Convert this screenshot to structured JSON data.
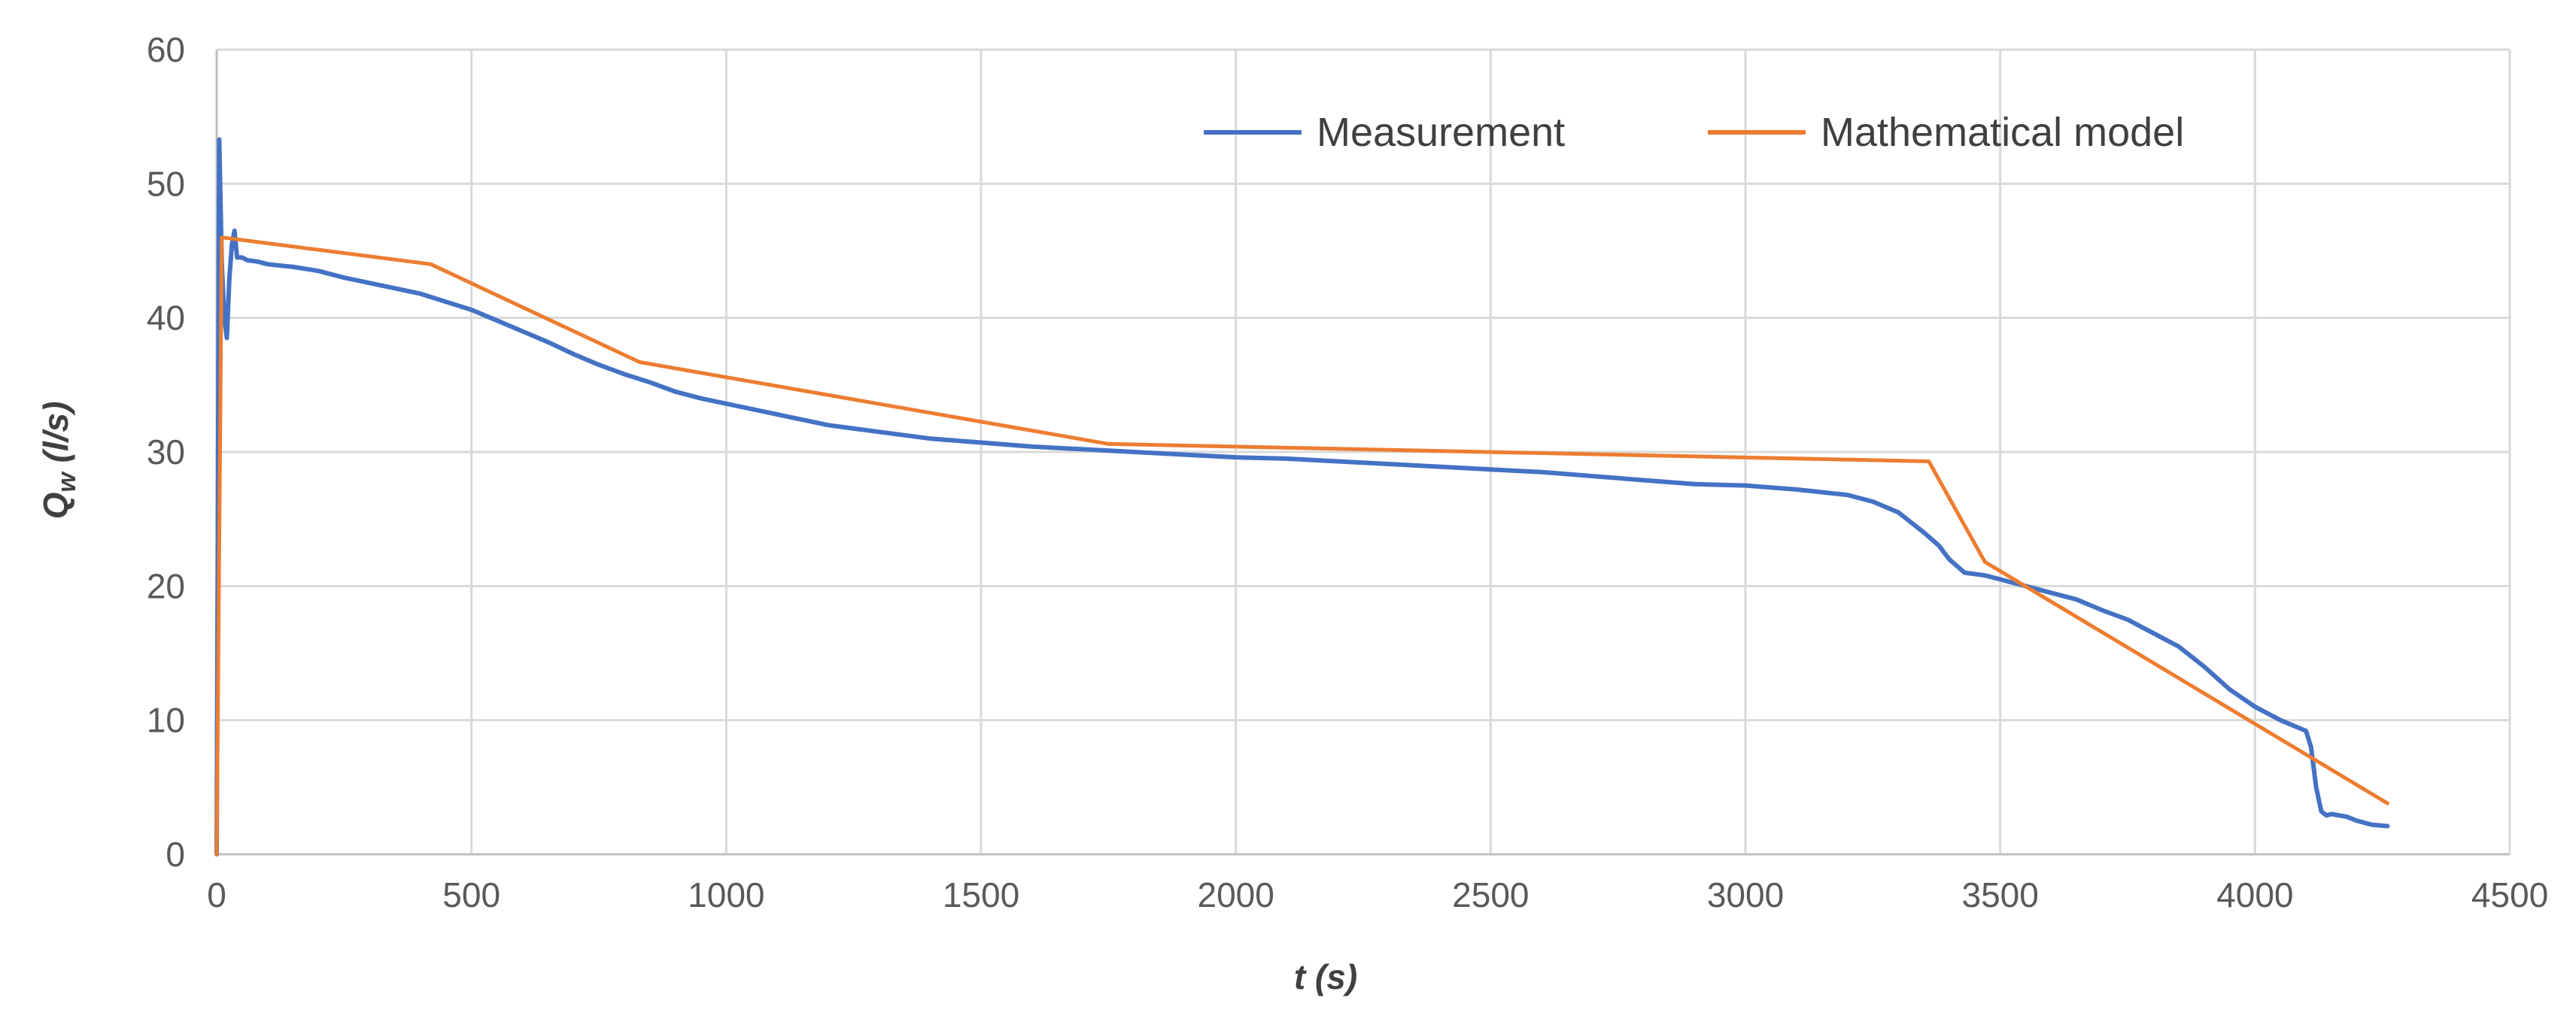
{
  "chart_data": {
    "type": "line",
    "title": "",
    "xlabel": "t (s)",
    "ylabel_main": "Q",
    "ylabel_sub": "w",
    "ylabel_unit": "(l/s)",
    "xlim": [
      0,
      4500
    ],
    "ylim": [
      0,
      60
    ],
    "xticks": [
      0,
      500,
      1000,
      1500,
      2000,
      2500,
      3000,
      3500,
      4000,
      4500
    ],
    "yticks": [
      0,
      10,
      20,
      30,
      40,
      50,
      60
    ],
    "grid": true,
    "legend_position": "top-right",
    "series": [
      {
        "name": "Measurement",
        "color": "#4472c4",
        "x": [
          0,
          5,
          10,
          15,
          20,
          25,
          30,
          35,
          40,
          50,
          60,
          80,
          100,
          150,
          200,
          250,
          300,
          350,
          400,
          450,
          500,
          550,
          600,
          650,
          700,
          750,
          800,
          850,
          900,
          950,
          1000,
          1050,
          1100,
          1150,
          1200,
          1300,
          1400,
          1500,
          1600,
          1700,
          1800,
          1900,
          2000,
          2100,
          2200,
          2300,
          2400,
          2500,
          2600,
          2700,
          2800,
          2900,
          3000,
          3100,
          3200,
          3250,
          3300,
          3350,
          3380,
          3400,
          3430,
          3470,
          3500,
          3550,
          3600,
          3650,
          3700,
          3750,
          3800,
          3850,
          3900,
          3950,
          4000,
          4050,
          4100,
          4110,
          4120,
          4130,
          4140,
          4150,
          4180,
          4200,
          4230,
          4260
        ],
        "y": [
          0,
          53.3,
          44,
          40,
          38.5,
          43,
          45.5,
          46.5,
          44.5,
          44.5,
          44.3,
          44.2,
          44,
          43.8,
          43.5,
          43,
          42.6,
          42.2,
          41.8,
          41.2,
          40.6,
          39.8,
          39,
          38.2,
          37.3,
          36.5,
          35.8,
          35.2,
          34.5,
          34,
          33.6,
          33.2,
          32.8,
          32.4,
          32,
          31.5,
          31,
          30.7,
          30.4,
          30.2,
          30,
          29.8,
          29.6,
          29.5,
          29.3,
          29.1,
          28.9,
          28.7,
          28.5,
          28.2,
          27.9,
          27.6,
          27.5,
          27.2,
          26.8,
          26.3,
          25.5,
          24,
          23,
          22,
          21,
          20.8,
          20.5,
          20,
          19.5,
          19,
          18.2,
          17.5,
          16.5,
          15.5,
          14,
          12.3,
          11,
          10,
          9.2,
          8,
          5,
          3.2,
          2.9,
          3,
          2.8,
          2.5,
          2.2,
          2.1
        ]
      },
      {
        "name": "Mathematical model",
        "color": "#ed7d31",
        "x": [
          0,
          10,
          420,
          830,
          1750,
          3360,
          3470,
          4260
        ],
        "y": [
          0,
          46,
          44,
          36.7,
          30.6,
          29.3,
          21.8,
          3.8
        ]
      }
    ]
  }
}
